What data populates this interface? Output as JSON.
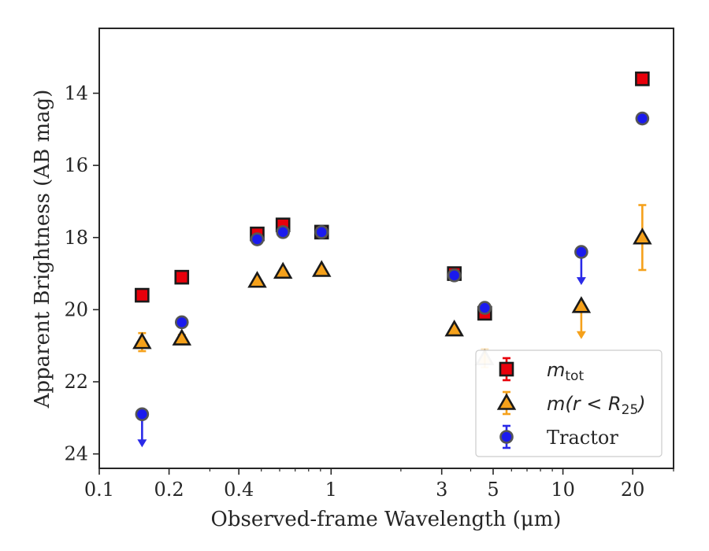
{
  "chart_data": {
    "type": "scatter",
    "xlabel": "Observed-frame Wavelength (μm)",
    "ylabel": "Apparent Brightness (AB mag)",
    "xscale": "log",
    "xlim": [
      0.1,
      30
    ],
    "ylim": [
      24.4,
      12.2
    ],
    "y_inverted": true,
    "grid": false,
    "legend_position": "lower-right",
    "x_ticks": [
      {
        "value": 0.1,
        "label": "0.1"
      },
      {
        "value": 0.2,
        "label": "0.2"
      },
      {
        "value": 0.4,
        "label": "0.4"
      },
      {
        "value": 1,
        "label": "1"
      },
      {
        "value": 3,
        "label": "3"
      },
      {
        "value": 5,
        "label": "5"
      },
      {
        "value": 10,
        "label": "10"
      },
      {
        "value": 20,
        "label": "20"
      }
    ],
    "y_ticks": [
      {
        "value": 14,
        "label": "14"
      },
      {
        "value": 16,
        "label": "16"
      },
      {
        "value": 18,
        "label": "18"
      },
      {
        "value": 20,
        "label": "20"
      },
      {
        "value": 22,
        "label": "22"
      },
      {
        "value": 24,
        "label": "24"
      }
    ],
    "series": [
      {
        "name": "m_tot",
        "legend_main": "m",
        "legend_sub": "tot",
        "marker": "square",
        "color": "#e8000b",
        "errorbar_color": "#e8000b",
        "points": [
          {
            "x": 0.153,
            "y": 19.6,
            "err": 0.1
          },
          {
            "x": 0.227,
            "y": 19.1,
            "err": 0.1
          },
          {
            "x": 0.48,
            "y": 17.9,
            "err": 0.1
          },
          {
            "x": 0.62,
            "y": 17.65,
            "err": 0.1
          },
          {
            "x": 0.91,
            "y": 17.85,
            "err": 0.1
          },
          {
            "x": 3.4,
            "y": 19.0,
            "err": 0.1
          },
          {
            "x": 4.6,
            "y": 20.1,
            "err": 0.15
          },
          {
            "x": 22.0,
            "y": 13.6,
            "err": 0.1
          }
        ]
      },
      {
        "name": "m(r < R25)",
        "legend_main": "m(r < R",
        "legend_sub": "25",
        "legend_tail": ")",
        "marker": "triangle",
        "color": "#f5a11b",
        "errorbar_color": "#f5a11b",
        "points": [
          {
            "x": 0.153,
            "y": 20.9,
            "err": 0.25
          },
          {
            "x": 0.227,
            "y": 20.8,
            "err": 0.1
          },
          {
            "x": 0.48,
            "y": 19.2,
            "err": 0.05
          },
          {
            "x": 0.62,
            "y": 18.95,
            "err": 0.05
          },
          {
            "x": 0.91,
            "y": 18.9,
            "err": 0.05
          },
          {
            "x": 3.4,
            "y": 20.55,
            "err": 0.05
          },
          {
            "x": 4.6,
            "y": 21.35,
            "err": 0.25,
            "faded": true
          },
          {
            "x": 12.0,
            "y": 19.9,
            "err": 0.0,
            "upper_limit": true
          },
          {
            "x": 22.0,
            "y": 18.0,
            "err": 0.9
          }
        ]
      },
      {
        "name": "Tractor",
        "legend_main": "Tractor",
        "marker": "circle",
        "color": "#1a1aee",
        "errorbar_color": "#2a2ae8",
        "points": [
          {
            "x": 0.153,
            "y": 22.9,
            "err": 0.0,
            "upper_limit": true
          },
          {
            "x": 0.227,
            "y": 20.35,
            "err": 0.05
          },
          {
            "x": 0.48,
            "y": 18.05,
            "err": 0.05
          },
          {
            "x": 0.62,
            "y": 17.85,
            "err": 0.05
          },
          {
            "x": 0.91,
            "y": 17.85,
            "err": 0.05
          },
          {
            "x": 3.4,
            "y": 19.05,
            "err": 0.05
          },
          {
            "x": 4.6,
            "y": 19.95,
            "err": 0.05
          },
          {
            "x": 12.0,
            "y": 18.4,
            "err": 0.0,
            "upper_limit": true
          },
          {
            "x": 22.0,
            "y": 14.7,
            "err": 0.05
          }
        ]
      }
    ]
  }
}
